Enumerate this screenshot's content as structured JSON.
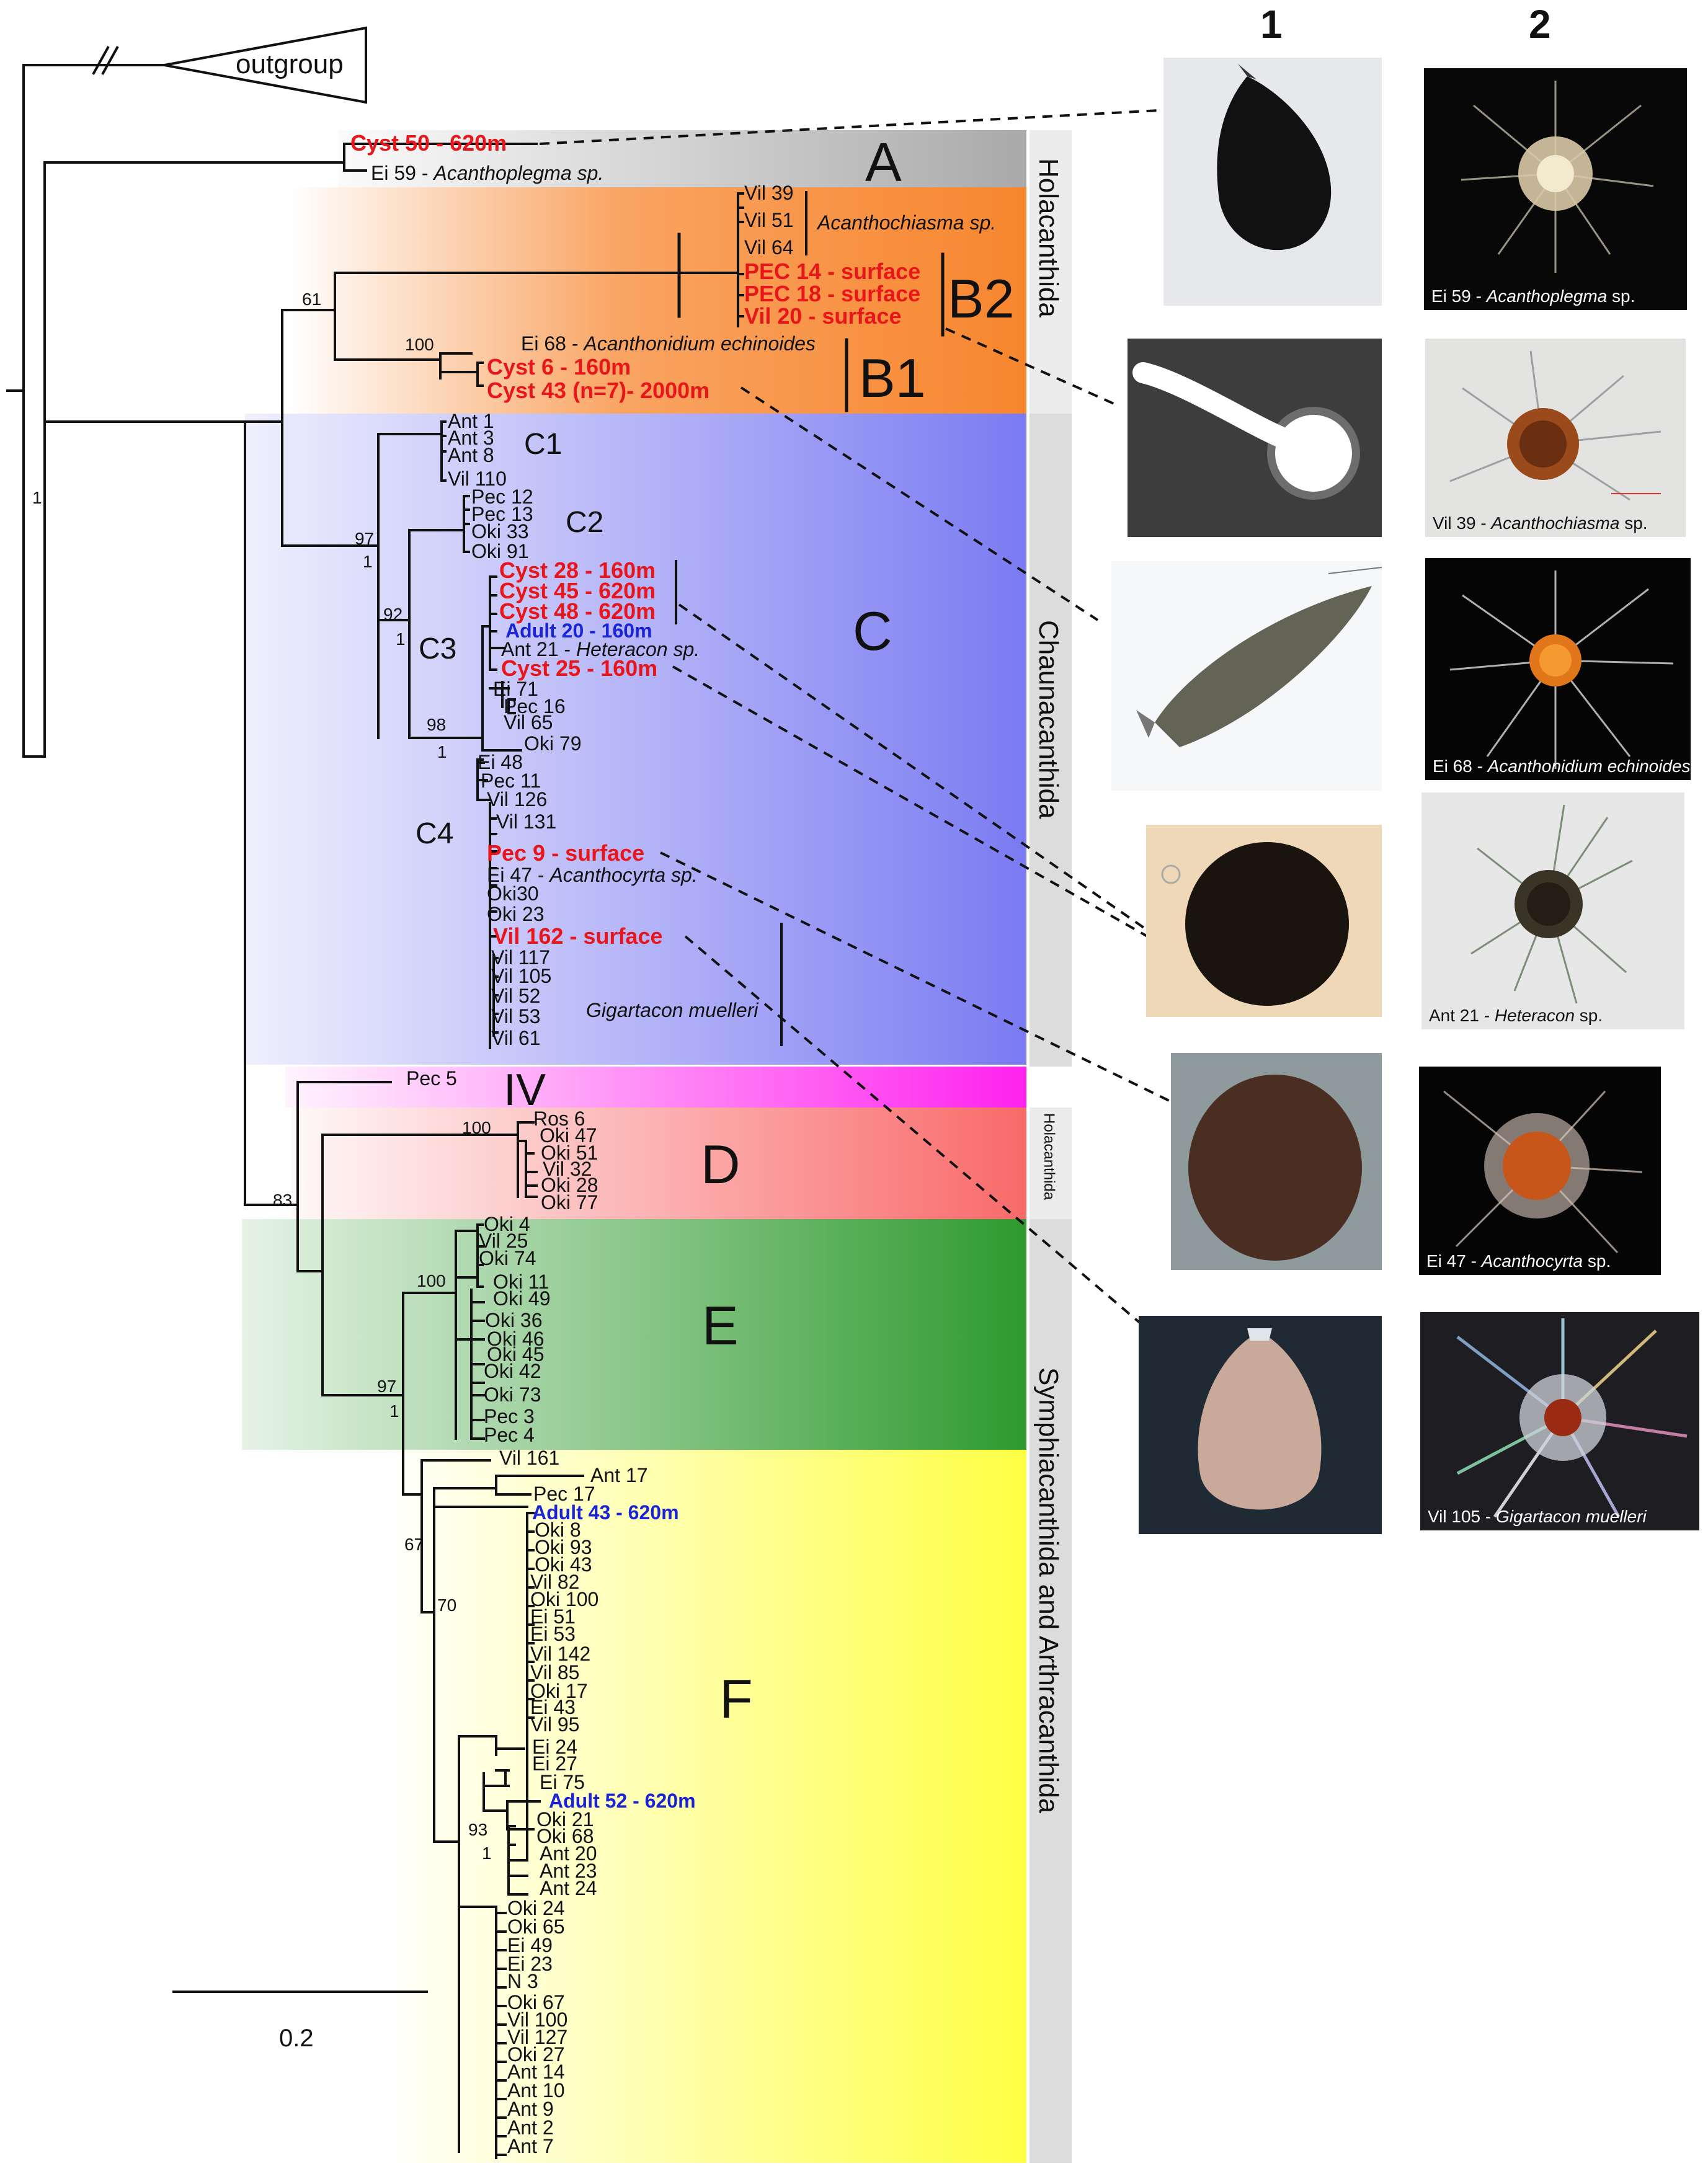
{
  "outgroup_label": "outgroup",
  "scale_bar_label": "0.2",
  "column_headers": [
    "1",
    "2"
  ],
  "clades": {
    "A": "A",
    "B1": "B1",
    "B2": "B2",
    "C": "C",
    "C1": "C1",
    "C2": "C2",
    "C3": "C3",
    "C4": "C4",
    "IV": "IV",
    "D": "D",
    "E": "E",
    "F": "F"
  },
  "orders": {
    "holacanthida_top": "Holacanthida",
    "chaunacanthida": "Chaunacanthida",
    "holacanthida_small": "Holacanthida",
    "symphiacanthida": "Symphiacanthida and Arthracanthida"
  },
  "support": [
    "61",
    "100",
    "97",
    "1",
    "92",
    "1",
    "98",
    "1",
    "100",
    "83",
    "100",
    "97",
    "1",
    "67",
    "70",
    "93",
    "1",
    "1"
  ],
  "leaves": {
    "cyst50": "Cyst 50 - 620m",
    "ei59": "Ei 59 - ",
    "ei59_sp": "Acanthoplegma sp.",
    "vil39": "Vil 39",
    "vil51": "Vil 51",
    "vil64": "Vil 64",
    "acanthochiasma": "Acanthochiasma sp.",
    "pec14": "PEC 14 -  surface",
    "pec18": "PEC 18 -  surface",
    "vil20": "Vil 20 -  surface",
    "ei68": "Ei 68 - ",
    "ei68_sp": "Acanthonidium echinoides",
    "cyst6": "Cyst 6 - 160m",
    "cyst43": "Cyst 43 (n=7)- 2000m",
    "c1": [
      "Ant 1",
      "Ant 3",
      "Ant 8",
      "Vil 110"
    ],
    "c2": [
      "Pec 12",
      "Pec 13",
      "Oki 33",
      "Oki 91"
    ],
    "cyst28": "Cyst 28 - 160m",
    "cyst45": "Cyst 45 - 620m",
    "cyst48": "Cyst 48 - 620m",
    "adult20": "Adult 20 - 160m",
    "ant21": "Ant 21 - ",
    "ant21_sp": "Heteracon sp.",
    "cyst25": "Cyst 25 - 160m",
    "c3rest": [
      "Ei 71",
      "Pec 16",
      "Vil 65",
      "Oki 79"
    ],
    "c4a": [
      "Ei 48",
      "Pec 11",
      "Vil 126",
      "Vil 131"
    ],
    "pec9": "Pec 9 - surface",
    "ei47": "Ei 47 - ",
    "ei47_sp": "Acanthocyrta sp.",
    "c4b": [
      "Oki30",
      "Oki 23"
    ],
    "vil162": "Vil 162 - surface",
    "c4c": [
      "Vil 117",
      "Vil 105",
      "Vil 52",
      "Vil 53",
      "Vil 61"
    ],
    "gigartacon": "Gigartacon muelleri",
    "pec5": "Pec 5",
    "d": [
      "Ros 6",
      "Oki 47",
      "Oki 51",
      "Vil 32",
      "Oki 28",
      "Oki 77"
    ],
    "e": [
      "Oki 4",
      "Vil 25",
      "Oki 74",
      "Oki 11",
      "Oki 49",
      "Oki 36",
      "Oki 46",
      "Oki 45",
      "Oki 42",
      "Oki 73",
      "Pec 3",
      "Pec 4"
    ],
    "f_top": [
      "Vil 161",
      "Ant 17",
      "Pec 17"
    ],
    "adult43": "Adult 43 - 620m",
    "f_mid": [
      "Oki 8",
      "Oki 93",
      "Oki 43",
      "Vil 82",
      "Oki 100",
      "Ei 51",
      "Ei 53",
      "Vil 142",
      "Vil 85",
      "Oki 17",
      "Ei 43",
      "Vil 95",
      "Ei 24",
      "Ei 27",
      "Ei 75"
    ],
    "adult52": "Adult 52 - 620m",
    "f_low": [
      "Oki 21",
      "Oki 68",
      "Ant 20",
      "Ant 23",
      "Ant 24",
      "Oki 24",
      "Oki 65",
      "Ei 49",
      "Ei 23",
      "N 3",
      "Oki 67",
      "Vil 100",
      "Vil 127",
      "Oki 27",
      "Ant 14",
      "Ant 10",
      "Ant 9",
      "Ant 2",
      "Ant 7"
    ]
  },
  "photo_captions": {
    "p1": "Ei 59 - ",
    "p1_sp": "Acanthoplegma",
    "p1_tail": " sp.",
    "p2": "Vil 39 - ",
    "p2_sp": "Acanthochiasma",
    "p2_tail": " sp.",
    "p3": "Ei 68 - ",
    "p3_sp": "Acanthonidium echinoides",
    "p3_tail": "",
    "p4": "Ant 21 - ",
    "p4_sp": "Heteracon",
    "p4_tail": " sp.",
    "p5": "Ei 47 - ",
    "p5_sp": "Acanthocyrta",
    "p5_tail": " sp.",
    "p6": "Vil 105 - ",
    "p6_sp": "Gigartacon muelleri",
    "p6_tail": ""
  },
  "colors": {
    "cyst_red": "#e8161b",
    "adult_blue": "#1a24d6",
    "clade_A": "#a9a9a9",
    "clade_B": "#f7862e",
    "clade_C": "#7b7bf2",
    "clade_IV": "#ff22ee",
    "clade_D": "#f96a6a",
    "clade_E": "#2e9a2e",
    "clade_F": "#ffff44",
    "order_bar": "#dcdcdc"
  }
}
